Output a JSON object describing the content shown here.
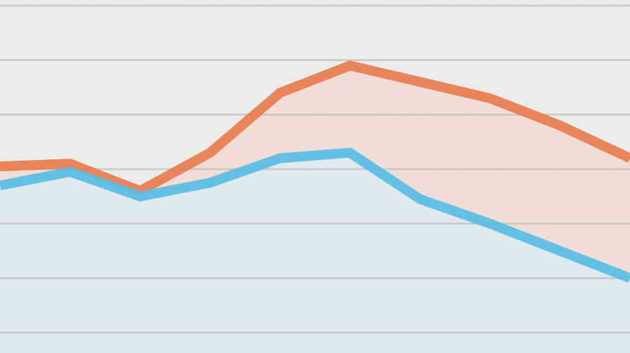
{
  "chart_data": {
    "type": "area",
    "x": [
      0,
      1,
      2,
      3,
      4,
      5,
      6,
      7,
      8,
      9
    ],
    "ylim": [
      0,
      6
    ],
    "grid": true,
    "gridlines_y": [
      0,
      1,
      2,
      3,
      4,
      5,
      6
    ],
    "legend": "none",
    "series": [
      {
        "color": "#f08050",
        "fill": "#f8e4de",
        "values": [
          3.05,
          3.1,
          2.6,
          3.3,
          4.4,
          4.9,
          4.6,
          4.3,
          3.8,
          3.2
        ]
      },
      {
        "color": "#5bc3ec",
        "fill": "#e7f1f4",
        "values": [
          2.7,
          2.95,
          2.5,
          2.75,
          3.2,
          3.3,
          2.45,
          2.0,
          1.5,
          1.0
        ]
      }
    ]
  }
}
